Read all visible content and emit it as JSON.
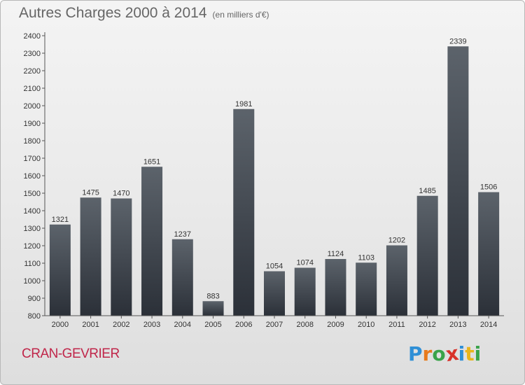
{
  "header": {
    "title": "Autres Charges 2000 à 2014",
    "subtitle": "(en milliers d'€)"
  },
  "footer": {
    "city": "CRAN-GEVRIER",
    "brand_letters": [
      "P",
      "r",
      "o",
      "x",
      "i",
      "t",
      "i"
    ],
    "brand_colors": [
      "#2f8fd6",
      "#e87a1c",
      "#3aa34a",
      "#d8322a",
      "#2f8fd6",
      "#e8b51c",
      "#3aa34a"
    ]
  },
  "chart_data": {
    "type": "bar",
    "title": "Autres Charges 2000 à 2014",
    "subtitle": "(en milliers d'€)",
    "categories": [
      "2000",
      "2001",
      "2002",
      "2003",
      "2004",
      "2005",
      "2006",
      "2007",
      "2008",
      "2009",
      "2010",
      "2011",
      "2012",
      "2013",
      "2014"
    ],
    "values": [
      1321,
      1475,
      1470,
      1651,
      1237,
      883,
      1981,
      1054,
      1074,
      1124,
      1103,
      1202,
      1485,
      2339,
      1506
    ],
    "yticks": [
      800,
      900,
      1000,
      1100,
      1200,
      1300,
      1400,
      1500,
      1600,
      1700,
      1800,
      1900,
      2000,
      2100,
      2200,
      2300,
      2400
    ],
    "ylim": [
      800,
      2400
    ],
    "grid": false,
    "data_labels": true,
    "bar_color": "#3a4048"
  }
}
